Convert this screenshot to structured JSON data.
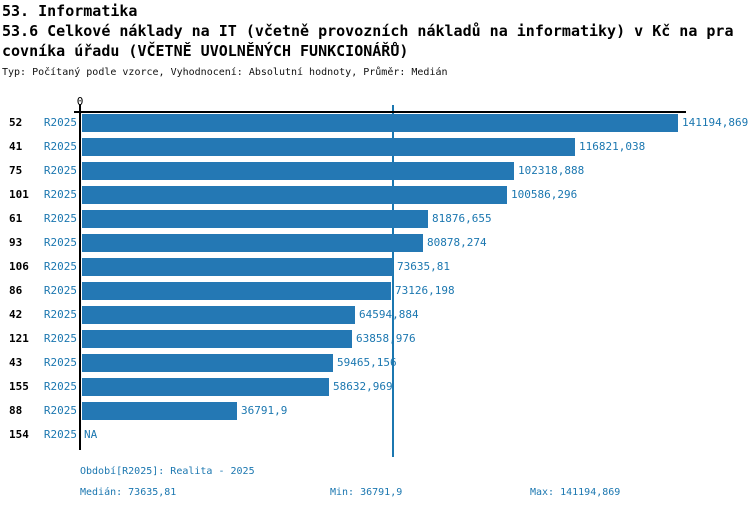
{
  "header": {
    "section": "53. Informatika",
    "title_line1": "53.6 Celkové náklady na IT (včetně provozních nákladů na informatiky) v Kč na pra",
    "title_line2": "covníka úřadu (VČETNĚ UVOLNĚNÝCH FUNKCIONÁŘŮ)",
    "meta": "Typ: Počítaný podle vzorce, Vyhodnocení: Absolutní hodnoty, Průměr: Medián"
  },
  "chart_data": {
    "type": "bar",
    "orientation": "horizontal",
    "title": "53.6 Celkové náklady na IT (včetně provozních nákladů na informatiky) v Kč na pracovníka úřadu (VČETNĚ UVOLNĚNÝCH FUNKCIONÁŘŮ)",
    "series_name": "R2025",
    "axis_zero_label": "0",
    "na_label": "NA",
    "categories": [
      "52",
      "41",
      "75",
      "101",
      "61",
      "93",
      "106",
      "86",
      "42",
      "121",
      "43",
      "155",
      "88",
      "154"
    ],
    "values": [
      141194.869,
      116821.038,
      102318.888,
      100586.296,
      81876.655,
      80878.274,
      73635.81,
      73126.198,
      64594.884,
      63858.976,
      59465.156,
      58632.969,
      36791.9,
      null
    ],
    "value_labels": [
      "141194,869",
      "116821,038",
      "102318,888",
      "100586,296",
      "81876,655",
      "80878,274",
      "73635,81",
      "73126,198",
      "64594,884",
      "63858,976",
      "59465,156",
      "58632,969",
      "36791,9",
      "NA"
    ],
    "xlim": [
      0,
      141194.869
    ],
    "median_reference_line": 73635.81,
    "legend_position": "none",
    "grid": false,
    "colors": {
      "bar": "#2478b4",
      "accent_text": "#1b77b0",
      "axis": "#000000"
    }
  },
  "footer": {
    "period": "Období[R2025]: Realita - 2025",
    "median": "Medián: 73635,81",
    "min": "Min: 36791,9",
    "max": "Max: 141194,869"
  }
}
